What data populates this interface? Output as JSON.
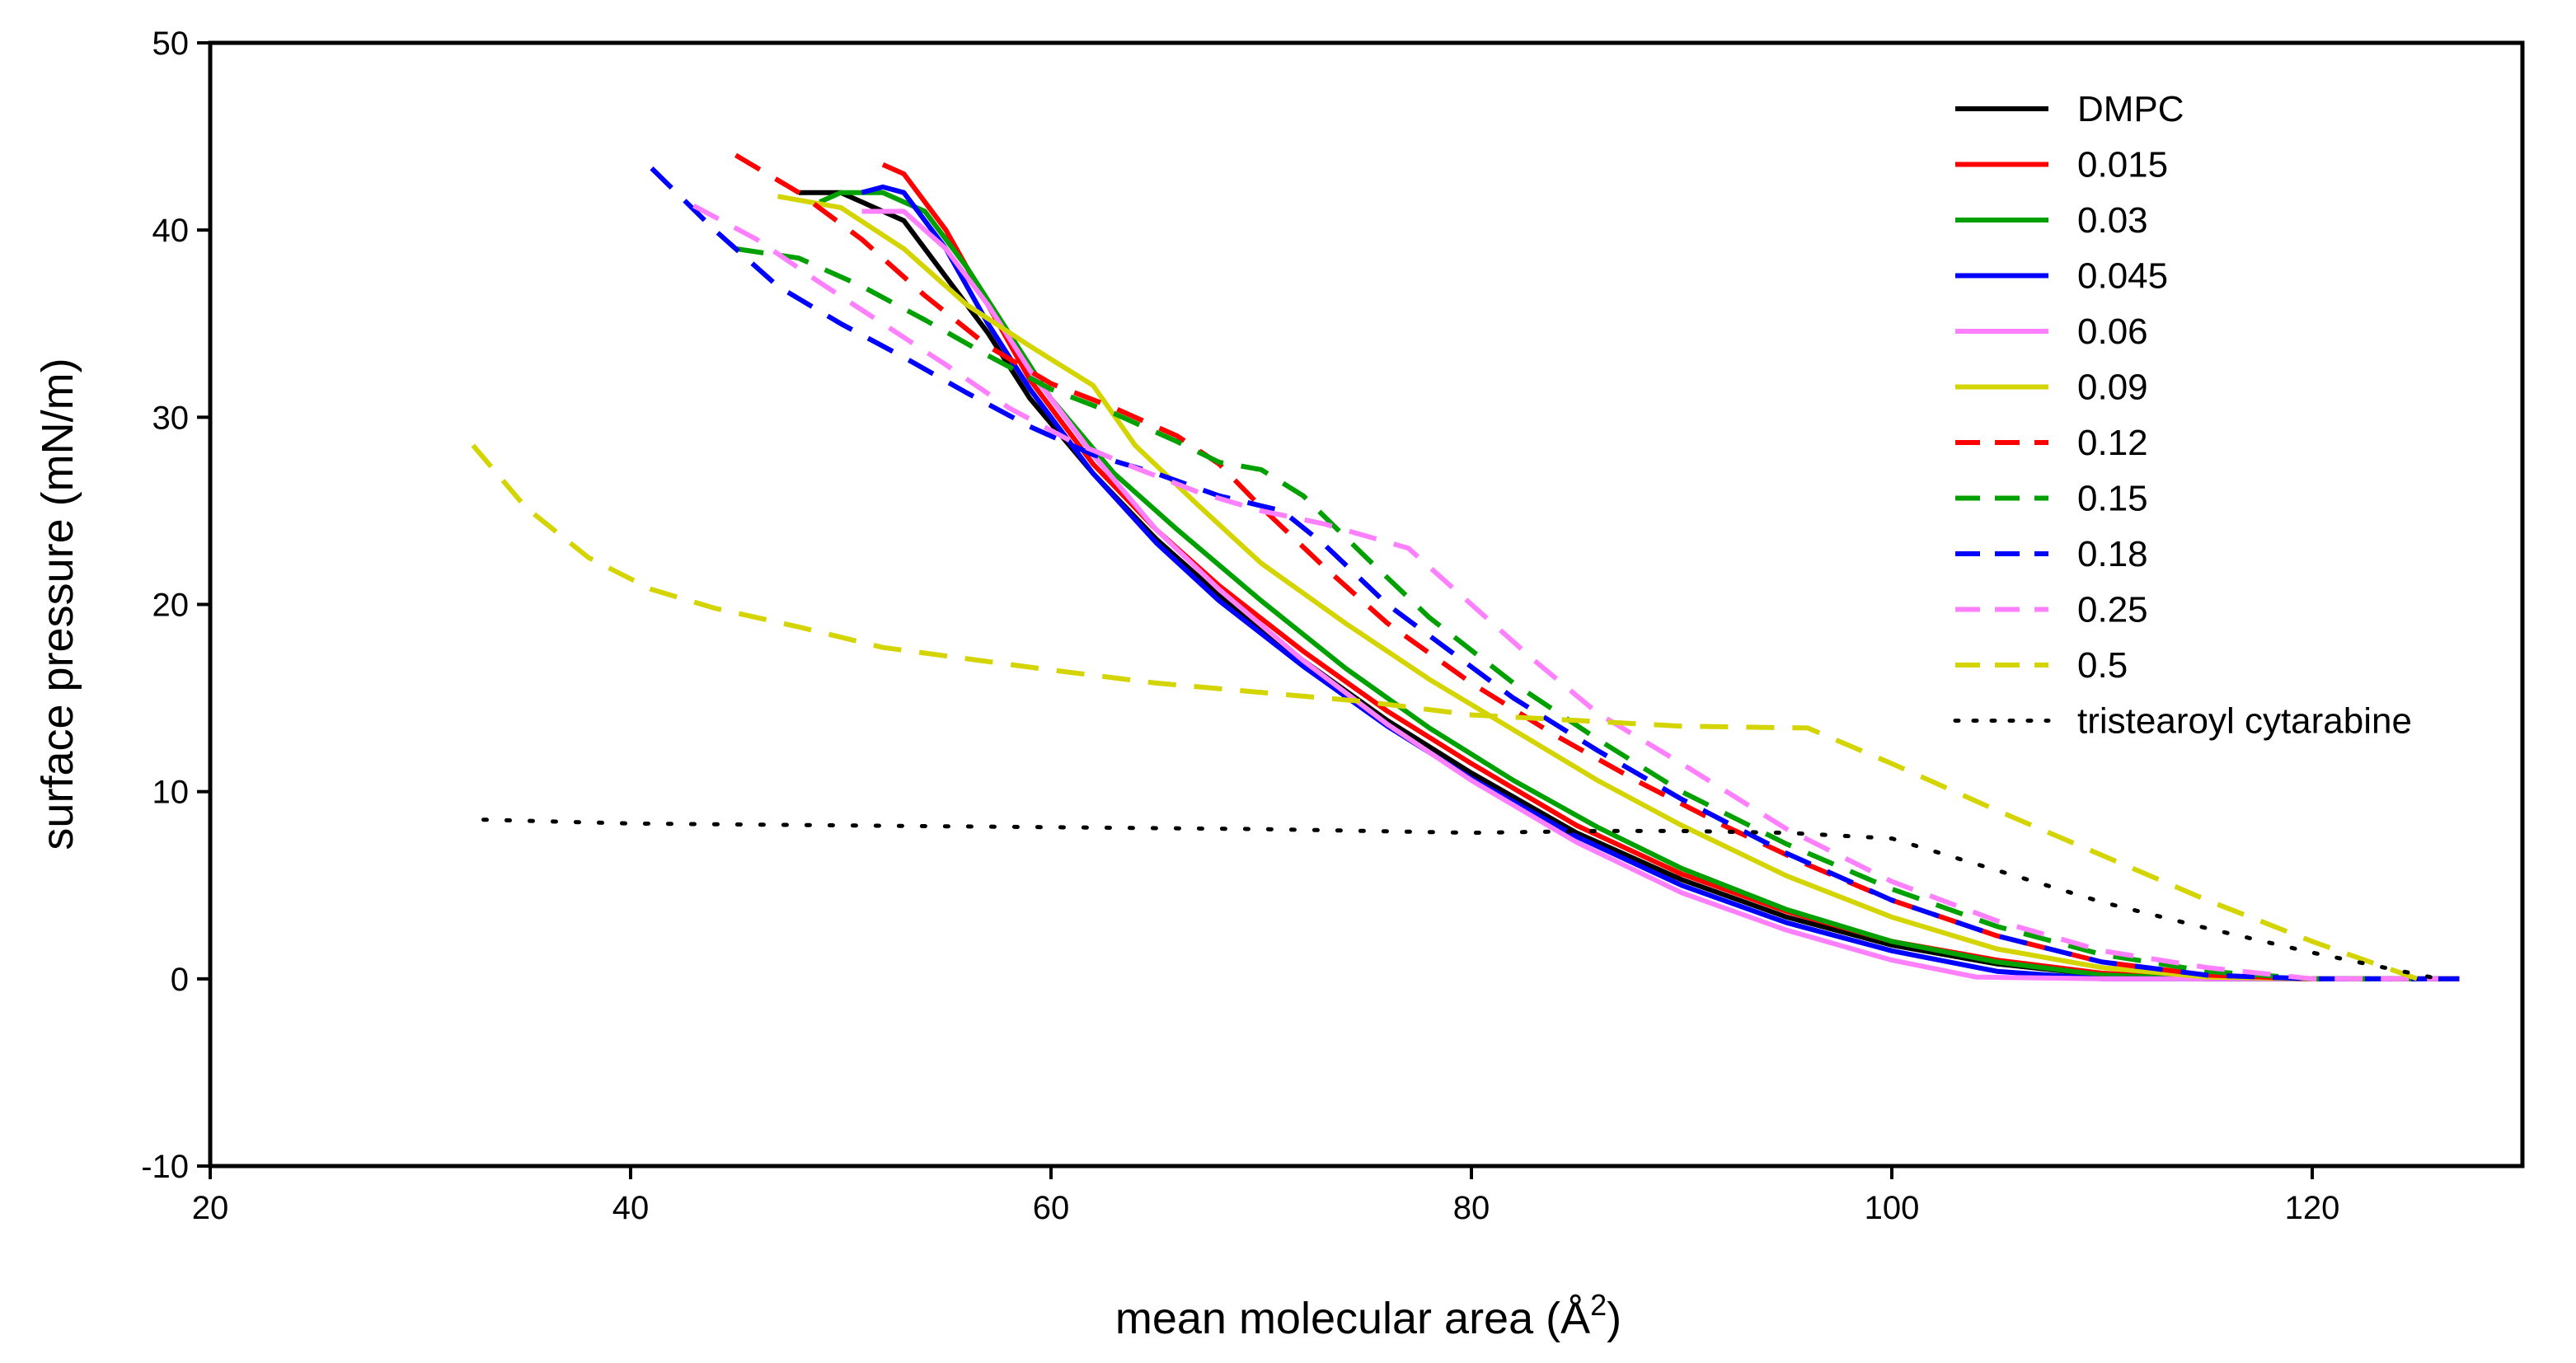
{
  "chart_data": {
    "type": "line",
    "title": "",
    "xlabel": "mean molecular area (Å",
    "xlabel_sup": "2",
    "xlabel_end": ")",
    "ylabel": "surface pressure (mN/m)",
    "xlim": [
      20,
      130
    ],
    "ylim": [
      -10,
      50
    ],
    "xticks": [
      20,
      40,
      60,
      80,
      100,
      120
    ],
    "yticks": [
      -10,
      0,
      10,
      20,
      30,
      40,
      50
    ],
    "grid": false,
    "legend_position": "top-right",
    "series": [
      {
        "name": "DMPC",
        "color": "#000000",
        "style": "solid",
        "x": [
          48,
          50,
          53,
          55,
          57,
          59,
          62,
          65,
          68,
          72,
          76,
          80,
          85,
          90,
          95,
          100,
          105,
          110,
          115,
          120,
          127
        ],
        "y": [
          42,
          42,
          40.5,
          37.5,
          34.5,
          31,
          27,
          23.5,
          20.5,
          17,
          13.8,
          11,
          7.8,
          5.3,
          3.3,
          1.8,
          0.8,
          0.2,
          0,
          0,
          0
        ]
      },
      {
        "name": "0.015",
        "color": "#ff0000",
        "style": "solid",
        "x": [
          52,
          53,
          55,
          57,
          59,
          62,
          65,
          68,
          72,
          76,
          80,
          85,
          90,
          95,
          100,
          105,
          110,
          115,
          120,
          127
        ],
        "y": [
          43.5,
          43,
          40,
          36,
          32,
          27.5,
          24,
          21,
          17.5,
          14.3,
          11.5,
          8.2,
          5.6,
          3.6,
          2,
          1,
          0.3,
          0,
          0,
          0
        ]
      },
      {
        "name": "0.03",
        "color": "#00a000",
        "style": "solid",
        "x": [
          49,
          50,
          52,
          54,
          56,
          58,
          60,
          63,
          66,
          70,
          74,
          78,
          82,
          86,
          90,
          95,
          100,
          105,
          110,
          115,
          120,
          126
        ],
        "y": [
          41.5,
          42,
          42,
          41,
          38,
          34.5,
          31,
          27,
          24,
          20.2,
          16.6,
          13.4,
          10.6,
          8.1,
          5.9,
          3.7,
          2,
          0.9,
          0.2,
          0,
          0,
          0
        ]
      },
      {
        "name": "0.045",
        "color": "#0000ff",
        "style": "solid",
        "x": [
          51,
          52,
          53,
          55,
          57,
          59,
          62,
          65,
          68,
          72,
          76,
          80,
          85,
          90,
          95,
          100,
          105,
          110,
          120,
          127
        ],
        "y": [
          42,
          42.3,
          42,
          39,
          35,
          31.5,
          27,
          23.3,
          20.2,
          16.7,
          13.5,
          10.7,
          7.6,
          5,
          3,
          1.5,
          0.4,
          0,
          0,
          0
        ]
      },
      {
        "name": "0.06",
        "color": "#ff80ff",
        "style": "solid",
        "x": [
          51,
          53,
          55,
          57,
          59,
          62,
          65,
          68,
          72,
          76,
          80,
          85,
          90,
          95,
          100,
          104,
          110,
          120,
          126
        ],
        "y": [
          41,
          41,
          39,
          36,
          32.5,
          28,
          24,
          20.8,
          17,
          13.6,
          10.6,
          7.3,
          4.6,
          2.6,
          1,
          0.1,
          0,
          0,
          0
        ]
      },
      {
        "name": "0.09",
        "color": "#d4d400",
        "style": "solid",
        "x": [
          47,
          50,
          53,
          56,
          59,
          62,
          64,
          67,
          70,
          74,
          78,
          82,
          86,
          90,
          95,
          100,
          105,
          110,
          115,
          120,
          126
        ],
        "y": [
          41.8,
          41.2,
          39,
          36,
          33.8,
          31.7,
          28.5,
          25.3,
          22.2,
          19,
          16,
          13.3,
          10.6,
          8.2,
          5.5,
          3.3,
          1.6,
          0.6,
          0.1,
          0,
          0
        ]
      },
      {
        "name": "0.12",
        "color": "#ff0000",
        "style": "dashed",
        "x": [
          45,
          48,
          51,
          54,
          57,
          60,
          63,
          66,
          68,
          70,
          73,
          76,
          80,
          84,
          88,
          92,
          96,
          100,
          105,
          110,
          115,
          120,
          126
        ],
        "y": [
          44,
          42,
          39.5,
          36.5,
          33.8,
          31.8,
          30.5,
          29,
          27.5,
          25.2,
          22,
          19,
          15.8,
          13,
          10.5,
          8.2,
          6.1,
          4.2,
          2.3,
          0.9,
          0.2,
          0,
          0
        ]
      },
      {
        "name": "0.15",
        "color": "#00a000",
        "style": "dashed",
        "x": [
          45,
          48,
          51,
          54,
          57,
          60,
          63,
          66,
          68,
          70,
          72,
          75,
          78,
          82,
          86,
          90,
          95,
          100,
          105,
          110,
          115,
          120,
          126
        ],
        "y": [
          39,
          38.5,
          37,
          35.2,
          33.3,
          31.5,
          30.2,
          28.7,
          27.6,
          27.2,
          25.8,
          22.5,
          19.3,
          15.8,
          12.8,
          10,
          7.2,
          4.8,
          2.8,
          1.3,
          0.4,
          0,
          0
        ]
      },
      {
        "name": "0.18",
        "color": "#0000ff",
        "style": "dashed",
        "x": [
          41,
          44,
          47,
          50,
          53,
          56,
          59,
          62,
          65,
          68,
          71,
          73,
          76,
          79,
          82,
          86,
          90,
          95,
          100,
          105,
          110,
          115,
          120,
          126
        ],
        "y": [
          43.3,
          40,
          37,
          35,
          33.2,
          31.3,
          29.5,
          28,
          27,
          25.8,
          25,
          23.2,
          20,
          17.5,
          15,
          12.2,
          9.6,
          6.7,
          4.2,
          2.3,
          0.9,
          0.2,
          0,
          0
        ]
      },
      {
        "name": "0.25",
        "color": "#ff80ff",
        "style": "dashed",
        "x": [
          43,
          46,
          49,
          52,
          55,
          58,
          61,
          64,
          67,
          70,
          73,
          77,
          80,
          83,
          86,
          90,
          95,
          100,
          105,
          110,
          115,
          120,
          126
        ],
        "y": [
          41.3,
          39.5,
          37.2,
          35,
          32.8,
          30.5,
          28.7,
          27.3,
          26,
          25,
          24.3,
          23,
          20,
          17,
          14.2,
          11.5,
          8,
          5.2,
          3.1,
          1.5,
          0.6,
          0,
          0
        ]
      },
      {
        "name": "0.5",
        "color": "#d4d400",
        "style": "dashed",
        "x": [
          32.5,
          35,
          38,
          41,
          44,
          48,
          52,
          56,
          60,
          65,
          70,
          75,
          80,
          85,
          90,
          96,
          100,
          105,
          110,
          115,
          120,
          125
        ],
        "y": [
          28.5,
          25.2,
          22.5,
          20.8,
          19.8,
          18.8,
          17.7,
          17.1,
          16.5,
          15.8,
          15.3,
          14.8,
          14.1,
          13.8,
          13.5,
          13.4,
          11.5,
          9,
          6.6,
          4.2,
          2,
          0
        ]
      },
      {
        "name": "tristearoyl cytarabine",
        "color": "#000000",
        "style": "dotted",
        "x": [
          33,
          40,
          50,
          60,
          70,
          80,
          86,
          90,
          95,
          100,
          105,
          110,
          115,
          120,
          126
        ],
        "y": [
          8.5,
          8.3,
          8.2,
          8.1,
          8.0,
          7.8,
          7.9,
          7.9,
          7.8,
          7.5,
          5.8,
          4.1,
          2.7,
          1.4,
          0
        ]
      }
    ]
  }
}
